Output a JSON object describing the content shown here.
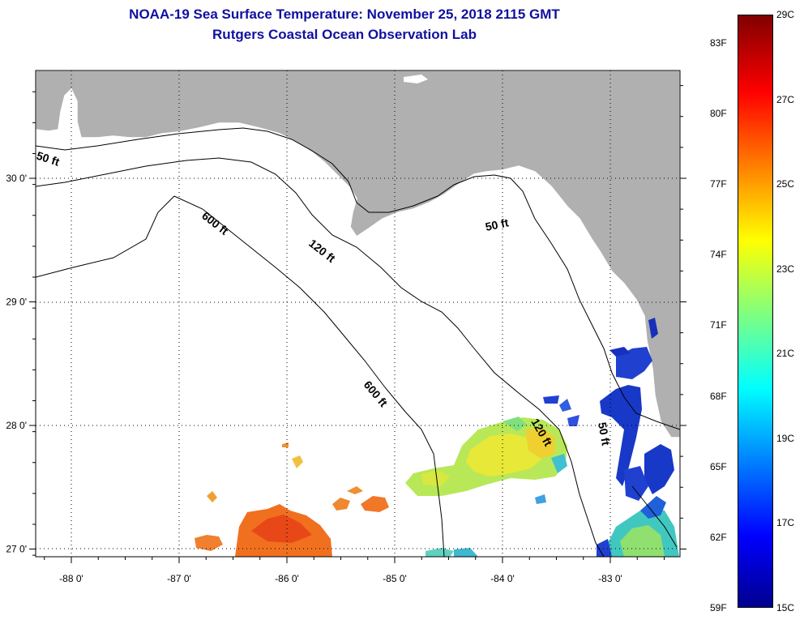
{
  "title": {
    "line1": "NOAA-19 Sea Surface Temperature:  November 25, 2018 2115 GMT",
    "line2": "Rutgers Coastal Ocean Observation Lab"
  },
  "axes": {
    "x_ticks": [
      {
        "lon": -88,
        "label": "-88 0'"
      },
      {
        "lon": -87,
        "label": "-87 0'"
      },
      {
        "lon": -86,
        "label": "-86 0'"
      },
      {
        "lon": -85,
        "label": "-85 0'"
      },
      {
        "lon": -84,
        "label": "-84 0'"
      },
      {
        "lon": -83,
        "label": "-83 0'"
      }
    ],
    "y_ticks": [
      {
        "lat": 30,
        "label": "30 0'"
      },
      {
        "lat": 29,
        "label": "29 0'"
      },
      {
        "lat": 28,
        "label": "28 0'"
      },
      {
        "lat": 27,
        "label": "27 0'"
      }
    ]
  },
  "contours": [
    {
      "text": "50 ft"
    },
    {
      "text": "600 ft"
    },
    {
      "text": "120 ft"
    },
    {
      "text": "50 ft"
    },
    {
      "text": "600 ft"
    },
    {
      "text": "120 ft"
    },
    {
      "text": "50 ft"
    }
  ],
  "colorbar": {
    "title_top_f": "",
    "fahrenheit": [
      {
        "value": 83,
        "label": "83F"
      },
      {
        "value": 80,
        "label": "80F"
      },
      {
        "value": 77,
        "label": "77F"
      },
      {
        "value": 74,
        "label": "74F"
      },
      {
        "value": 71,
        "label": "71F"
      },
      {
        "value": 68,
        "label": "68F"
      },
      {
        "value": 65,
        "label": "65F"
      },
      {
        "value": 62,
        "label": "62F"
      },
      {
        "value": 59,
        "label": "59F"
      }
    ],
    "celsius": [
      {
        "value": 29,
        "label": "29C"
      },
      {
        "value": 27,
        "label": "27C"
      },
      {
        "value": 25,
        "label": "25C"
      },
      {
        "value": 23,
        "label": "23C"
      },
      {
        "value": 21,
        "label": "21C"
      },
      {
        "value": 19,
        "label": "19C"
      },
      {
        "value": 17,
        "label": "17C"
      },
      {
        "value": 15,
        "label": "15C"
      }
    ],
    "range_c": [
      15,
      29
    ]
  }
}
